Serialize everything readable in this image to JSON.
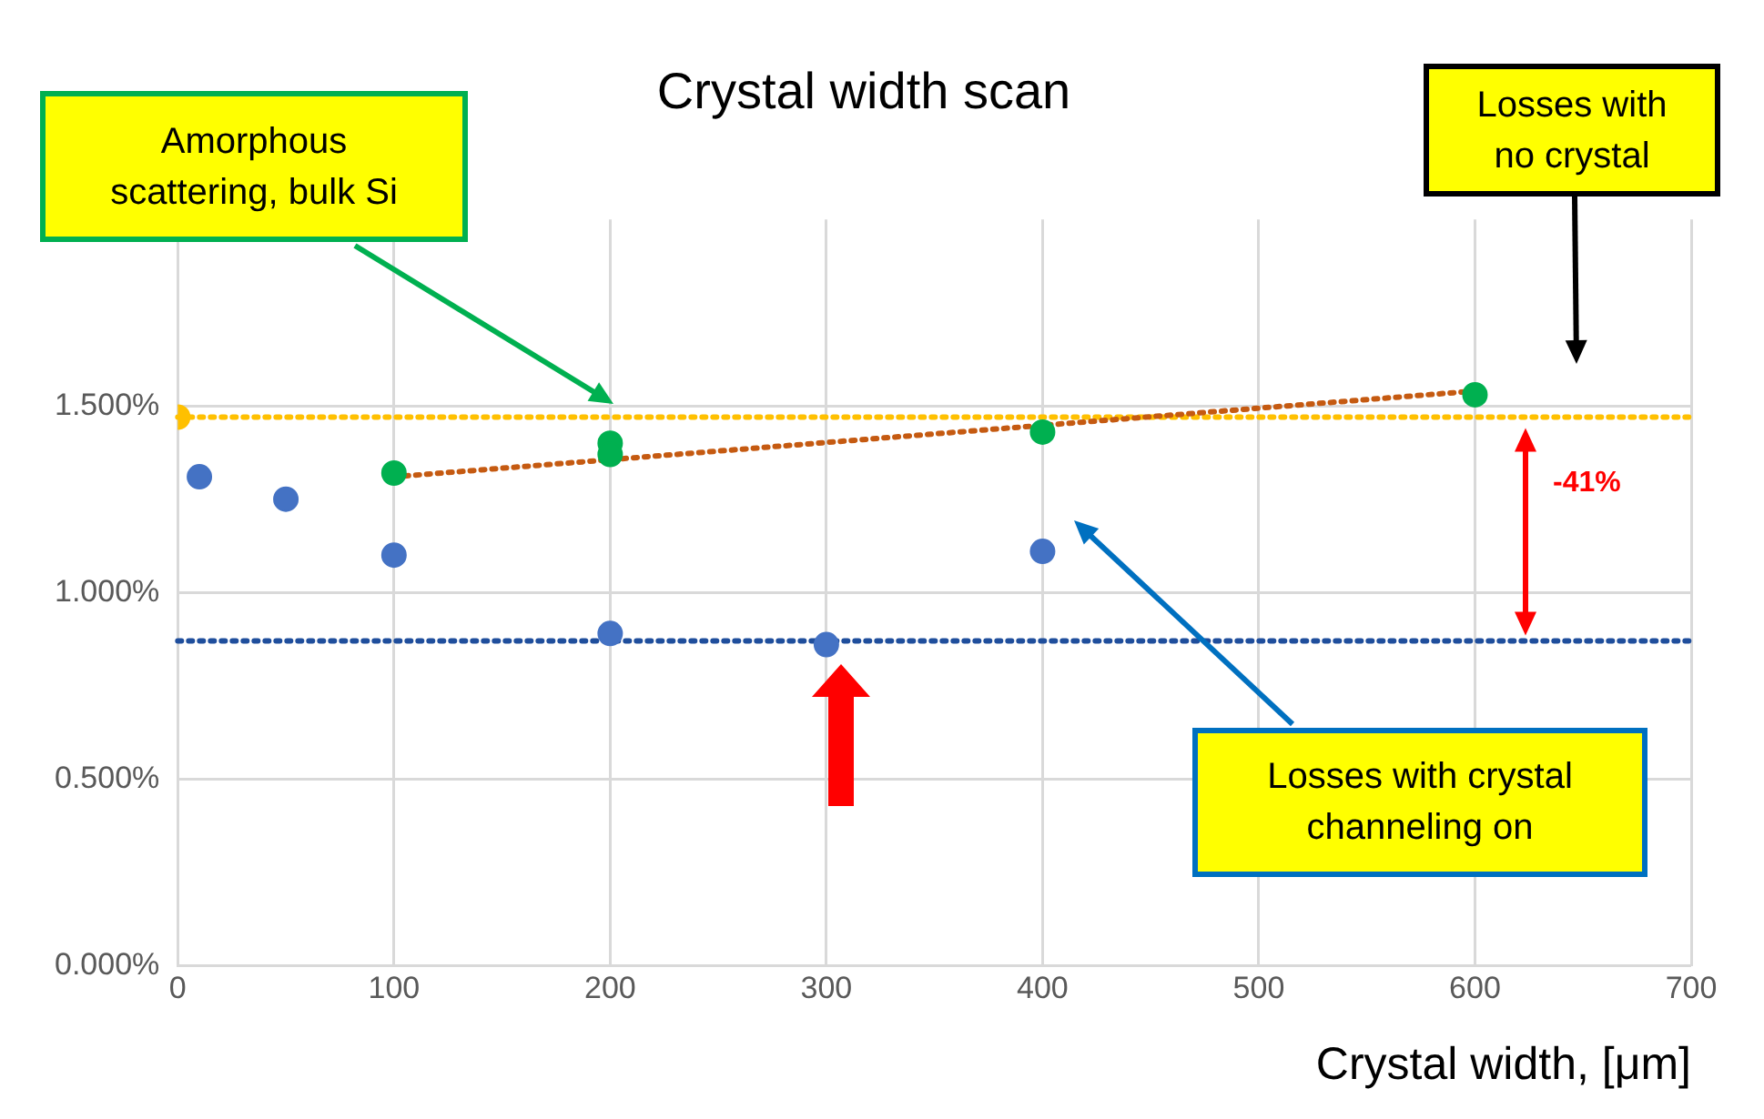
{
  "chart_data": {
    "type": "scatter",
    "title": "Crystal width scan",
    "xlabel": "Crystal width, [μm]",
    "xlim": [
      0,
      700
    ],
    "xticks": [
      0,
      100,
      200,
      300,
      400,
      500,
      600,
      700
    ],
    "ylim": [
      0,
      2
    ],
    "yticks": [
      {
        "value": 0,
        "label": "0.000%"
      },
      {
        "value": 0.5,
        "label": "0.500%"
      },
      {
        "value": 1,
        "label": "1.000%"
      },
      {
        "value": 1.5,
        "label": "1.500%"
      }
    ],
    "grid": true,
    "legend": false,
    "marker": "circle",
    "series": [
      {
        "color": "#4472c4",
        "x": [
          10,
          50,
          100,
          200,
          300,
          400
        ],
        "values": [
          1.31,
          1.25,
          1.1,
          0.89,
          0.86,
          1.11
        ]
      },
      {
        "color": "#00b050",
        "x": [
          100,
          200,
          200,
          400,
          600
        ],
        "values": [
          1.32,
          1.4,
          1.37,
          1.43,
          1.53
        ]
      },
      {
        "color": "#ffc000",
        "x": [
          0
        ],
        "values": [
          1.47
        ]
      },
      {
        "type": "line",
        "color": "#c55a11",
        "line_style": "dotted",
        "marker": "none",
        "x": [
          100,
          600
        ],
        "values": [
          1.31,
          1.54
        ]
      }
    ],
    "ref_lines": [
      {
        "axis": "y",
        "value": 1.47,
        "color": "#ffc000",
        "line_style": "dotted"
      },
      {
        "axis": "y",
        "value": 0.87,
        "color": "#1f4e9c",
        "line_style": "dotted"
      }
    ],
    "annotations": [
      "Amorphous scattering, bulk Si",
      "Losses with no crystal",
      "Losses with crystal channeling on",
      "-41%"
    ]
  }
}
